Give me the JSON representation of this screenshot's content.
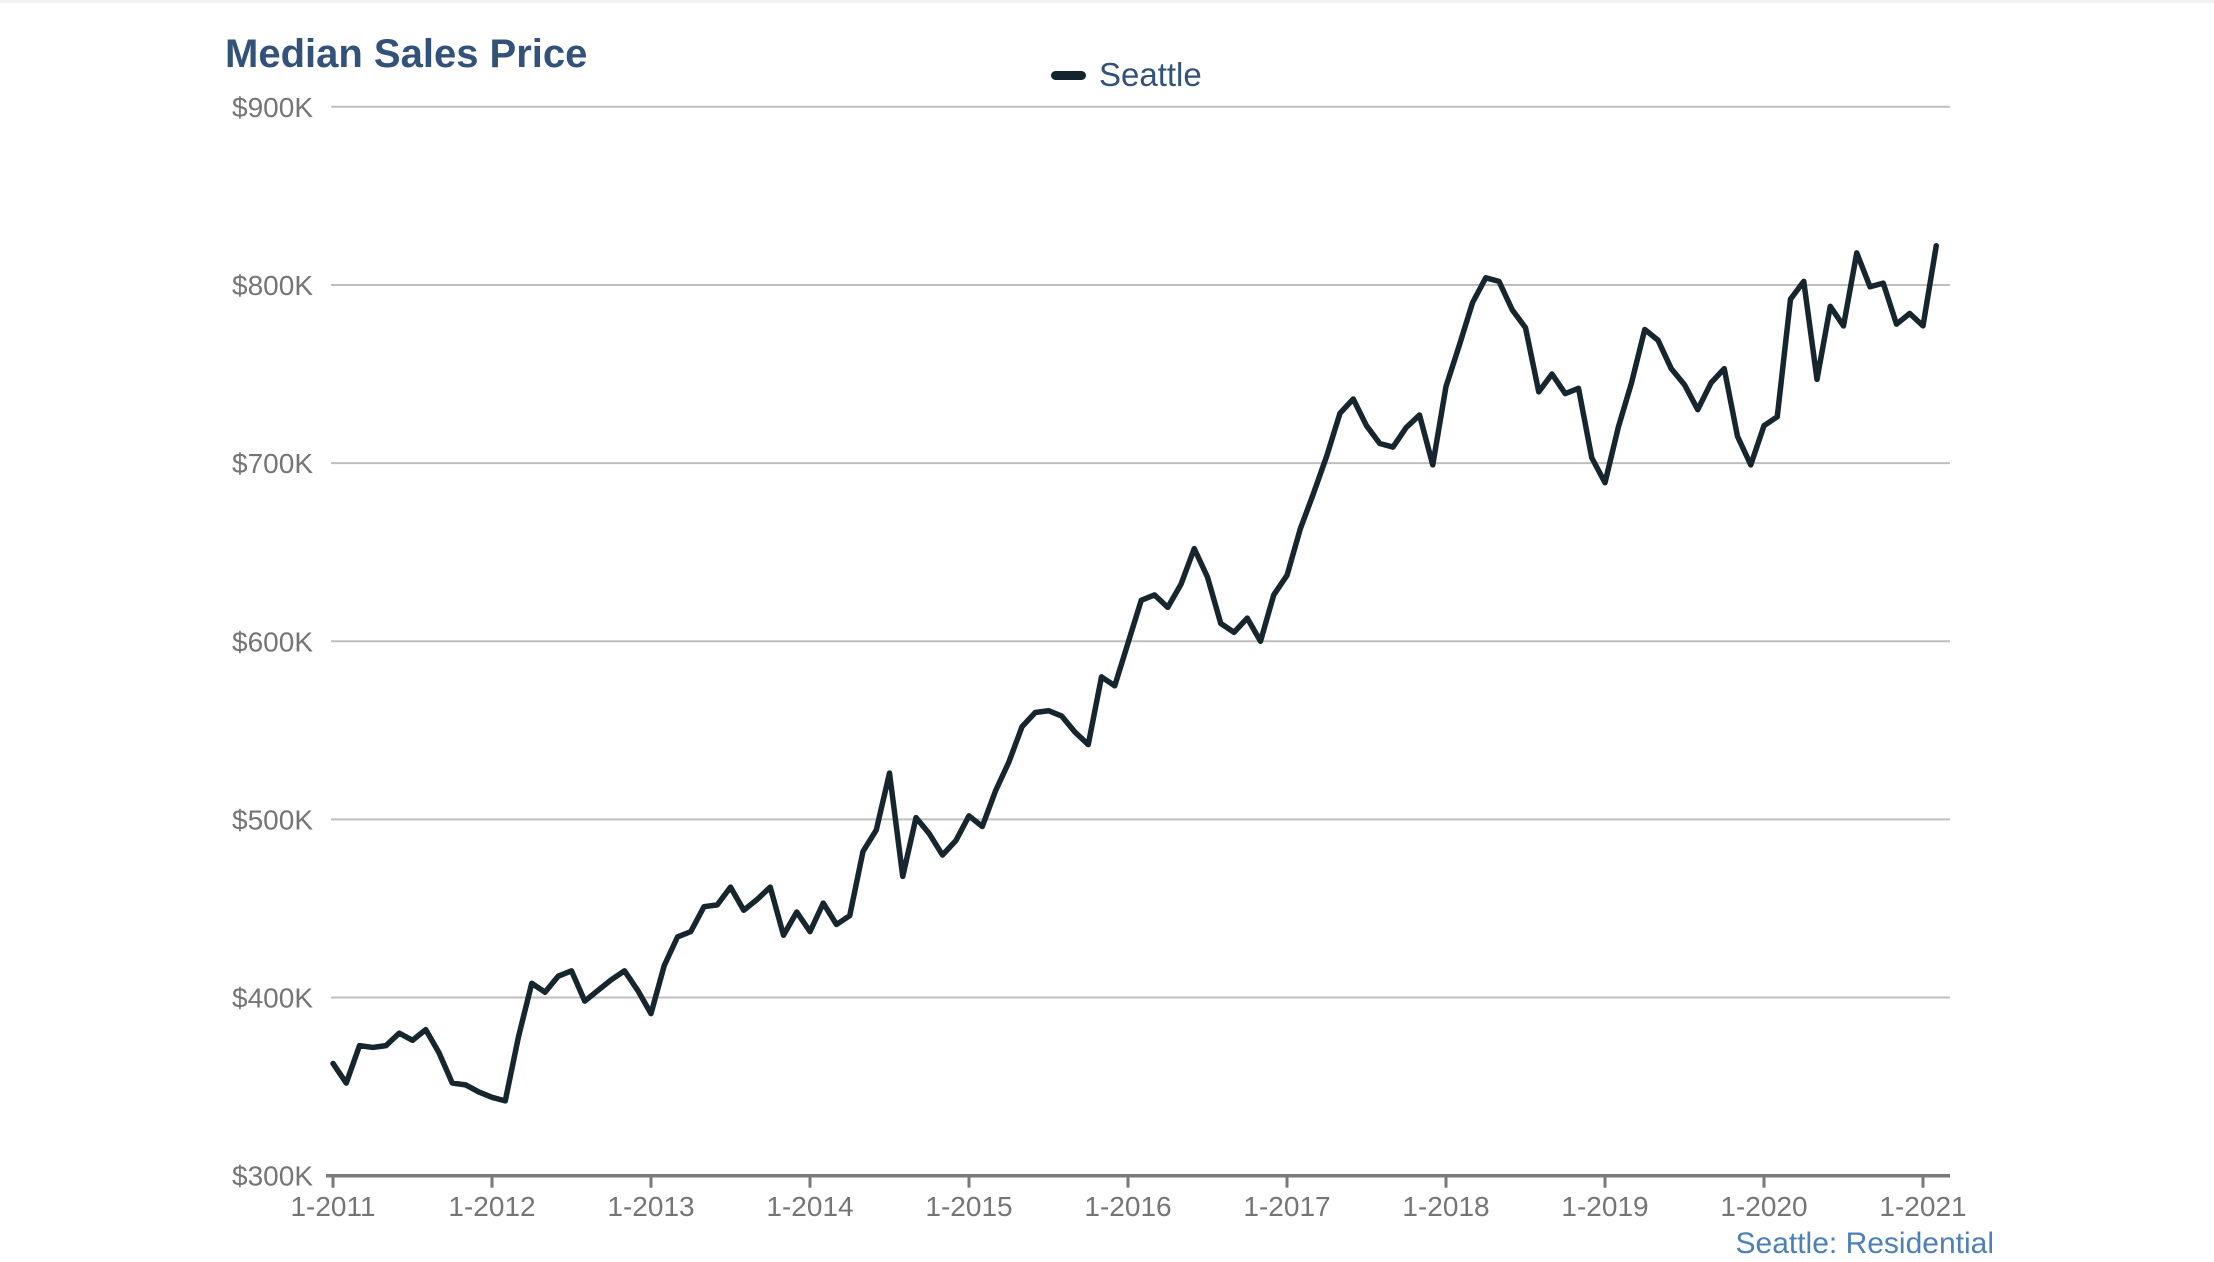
{
  "title": "Median Sales Price",
  "legend": {
    "label": "Seattle"
  },
  "source_note": "Seattle: Residential",
  "colors": {
    "title_text": "#33527a",
    "legend_text": "#33527a",
    "legend_swatch": "#13242e",
    "line": "#16262f",
    "gridline": "#bfbfbf",
    "axis": "#7a7a7a",
    "tick_label": "#757575",
    "source_note_text": "#4d80b7",
    "top_border": "#f2f2f2",
    "background": "#ffffff"
  },
  "chart_data": {
    "type": "line",
    "title": "Median Sales Price",
    "xlabel": "",
    "ylabel": "",
    "unit": "USD thousands",
    "ylim": [
      300,
      900
    ],
    "grid": "horizontal",
    "legend_position": "top-center",
    "y_axis": {
      "tick_labels": [
        "$900K",
        "$800K",
        "$700K",
        "$600K",
        "$500K",
        "$400K",
        "$300K"
      ],
      "tick_values": [
        900,
        800,
        700,
        600,
        500,
        400,
        300
      ]
    },
    "x_axis": {
      "tick_labels": [
        "1-2011",
        "1-2012",
        "1-2013",
        "1-2014",
        "1-2015",
        "1-2016",
        "1-2017",
        "1-2018",
        "1-2019",
        "1-2020",
        "1-2021"
      ],
      "tick_month_indexes": [
        0,
        12,
        24,
        36,
        48,
        60,
        72,
        84,
        96,
        108,
        120
      ]
    },
    "series": [
      {
        "name": "Seattle",
        "x": [
          "2011-01",
          "2011-02",
          "2011-03",
          "2011-04",
          "2011-05",
          "2011-06",
          "2011-07",
          "2011-08",
          "2011-09",
          "2011-10",
          "2011-11",
          "2011-12",
          "2012-01",
          "2012-02",
          "2012-03",
          "2012-04",
          "2012-05",
          "2012-06",
          "2012-07",
          "2012-08",
          "2012-09",
          "2012-10",
          "2012-11",
          "2012-12",
          "2013-01",
          "2013-02",
          "2013-03",
          "2013-04",
          "2013-05",
          "2013-06",
          "2013-07",
          "2013-08",
          "2013-09",
          "2013-10",
          "2013-11",
          "2013-12",
          "2014-01",
          "2014-02",
          "2014-03",
          "2014-04",
          "2014-05",
          "2014-06",
          "2014-07",
          "2014-08",
          "2014-09",
          "2014-10",
          "2014-11",
          "2014-12",
          "2015-01",
          "2015-02",
          "2015-03",
          "2015-04",
          "2015-05",
          "2015-06",
          "2015-07",
          "2015-08",
          "2015-09",
          "2015-10",
          "2015-11",
          "2015-12",
          "2016-01",
          "2016-02",
          "2016-03",
          "2016-04",
          "2016-05",
          "2016-06",
          "2016-07",
          "2016-08",
          "2016-09",
          "2016-10",
          "2016-11",
          "2016-12",
          "2017-01",
          "2017-02",
          "2017-03",
          "2017-04",
          "2017-05",
          "2017-06",
          "2017-07",
          "2017-08",
          "2017-09",
          "2017-10",
          "2017-11",
          "2017-12",
          "2018-01",
          "2018-02",
          "2018-03",
          "2018-04",
          "2018-05",
          "2018-06",
          "2018-07",
          "2018-08",
          "2018-09",
          "2018-10",
          "2018-11",
          "2018-12",
          "2019-01",
          "2019-02",
          "2019-03",
          "2019-04",
          "2019-05",
          "2019-06",
          "2019-07",
          "2019-08",
          "2019-09",
          "2019-10",
          "2019-11",
          "2019-12",
          "2020-01",
          "2020-02",
          "2020-03",
          "2020-04",
          "2020-05",
          "2020-06",
          "2020-07",
          "2020-08",
          "2020-09",
          "2020-10",
          "2020-11",
          "2020-12",
          "2021-01",
          "2021-02"
        ],
        "values_k_usd": [
          363,
          352,
          373,
          372,
          373,
          380,
          376,
          382,
          369,
          352,
          351,
          347,
          344,
          342,
          378,
          408,
          403,
          412,
          415,
          398,
          404,
          410,
          415,
          404,
          391,
          418,
          434,
          437,
          451,
          452,
          462,
          449,
          455,
          462,
          435,
          448,
          437,
          453,
          441,
          446,
          482,
          494,
          526,
          468,
          501,
          492,
          480,
          488,
          502,
          496,
          516,
          532,
          552,
          560,
          561,
          558,
          549,
          542,
          580,
          575,
          599,
          623,
          626,
          619,
          632,
          652,
          636,
          610,
          605,
          613,
          600,
          626,
          637,
          663,
          683,
          704,
          728,
          736,
          721,
          711,
          709,
          720,
          727,
          699,
          743,
          766,
          790,
          804,
          802,
          786,
          776,
          740,
          750,
          739,
          742,
          703,
          689,
          720,
          745,
          775,
          769,
          753,
          744,
          730,
          745,
          753,
          715,
          699,
          721,
          726,
          792,
          802,
          747,
          788,
          777,
          818,
          799,
          801,
          778,
          784,
          777,
          822
        ]
      }
    ],
    "source_note": "Seattle: Residential"
  }
}
